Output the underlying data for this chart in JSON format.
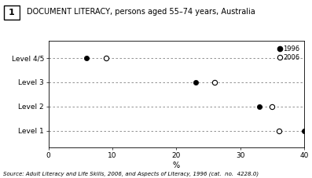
{
  "title": "DOCUMENT LITERACY, persons aged 55–74 years, Australia",
  "title_num": "1",
  "levels": [
    "Level 4/5",
    "Level 3",
    "Level 2",
    "Level 1"
  ],
  "data_1996": [
    6,
    23,
    33,
    40
  ],
  "data_2006": [
    9,
    26,
    35,
    36
  ],
  "xlabel": "%",
  "xlim": [
    0,
    40
  ],
  "xticks": [
    0,
    10,
    20,
    30,
    40
  ],
  "source": "Source: Adult Literacy and Life Skills, 2006, and Aspects of Literacy, 1996 (cat.  no.  4228.0)",
  "legend_1996": "1996",
  "legend_2006": "2006",
  "background": "white"
}
